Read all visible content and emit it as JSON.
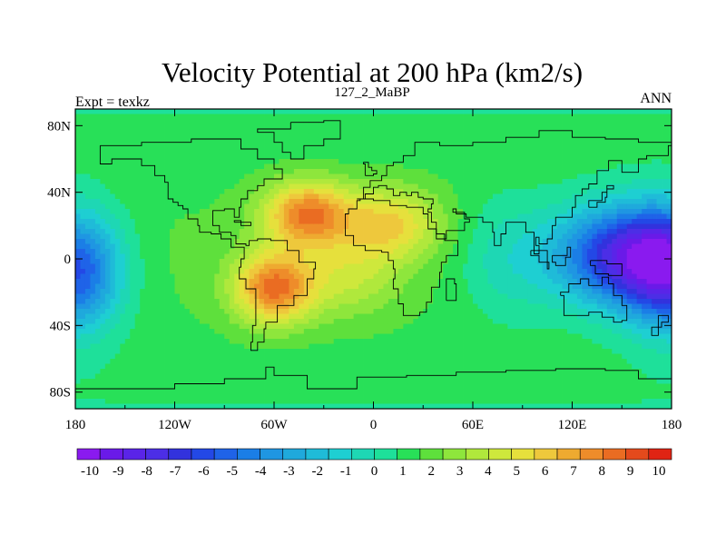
{
  "chart_data": {
    "type": "heatmap",
    "title": "Velocity Potential at 200 hPa (km2/s)",
    "subtitle_left": "Expt = texkz",
    "subtitle_center": "127_2_MaBP",
    "subtitle_right": "ANN",
    "x_ticks": [
      "180",
      "120W",
      "60W",
      "0",
      "60E",
      "120E",
      "180"
    ],
    "x_tick_values": [
      -180,
      -120,
      -60,
      0,
      60,
      120,
      180
    ],
    "y_ticks": [
      "80N",
      "40N",
      "0",
      "40S",
      "80S"
    ],
    "y_tick_values": [
      80,
      40,
      0,
      -40,
      -80
    ],
    "xlim": [
      -180,
      180
    ],
    "ylim": [
      -90,
      90
    ],
    "colorbar_labels": [
      "-10",
      "-9",
      "-8",
      "-7",
      "-6",
      "-5",
      "-4",
      "-3",
      "-2",
      "-1",
      "0",
      "1",
      "2",
      "3",
      "4",
      "5",
      "6",
      "7",
      "8",
      "9",
      "10"
    ],
    "colorbar_colors": [
      "#8a1aef",
      "#6a1ae8",
      "#5a24e8",
      "#4c2ee6",
      "#3232dd",
      "#2348e6",
      "#1f63e8",
      "#1b7ee6",
      "#1f96e2",
      "#1fa9dc",
      "#1fbbd8",
      "#1ecfd2",
      "#1ed7b4",
      "#1ee09a",
      "#28e058",
      "#5ee03c",
      "#8ee63c",
      "#b0e83c",
      "#cee83c",
      "#e6e03c",
      "#eec83c",
      "#eeaa30",
      "#ee8c2a",
      "#ea6c22",
      "#e44a1c",
      "#e02414"
    ],
    "centers": [
      {
        "lon": -40,
        "lat": 28,
        "amp": 7.2,
        "slon": 26,
        "slat": 20
      },
      {
        "lon": -60,
        "lat": -18,
        "amp": 7.2,
        "slon": 24,
        "slat": 22
      },
      {
        "lon": 10,
        "lat": 22,
        "amp": 4.5,
        "slon": 30,
        "slat": 22
      },
      {
        "lon": -15,
        "lat": -10,
        "amp": 2.5,
        "slon": 30,
        "slat": 25
      },
      {
        "lon": 150,
        "lat": 2,
        "amp": -9.2,
        "slon": 42,
        "slat": 32
      },
      {
        "lon": -180,
        "lat": -8,
        "amp": -8.0,
        "slon": 28,
        "slat": 38
      },
      {
        "lon": 180,
        "lat": -8,
        "amp": -8.0,
        "slon": 28,
        "slat": 38
      },
      {
        "lon": 80,
        "lat": 0,
        "amp": -2.0,
        "slon": 30,
        "slat": 40
      }
    ],
    "coastlines": [
      [
        [
          -165,
          68
        ],
        [
          -140,
          70
        ],
        [
          -110,
          72
        ],
        [
          -90,
          72
        ],
        [
          -80,
          66
        ],
        [
          -70,
          60
        ],
        [
          -60,
          54
        ],
        [
          -55,
          48
        ],
        [
          -66,
          44
        ],
        [
          -70,
          41
        ],
        [
          -76,
          36
        ],
        [
          -80,
          31
        ],
        [
          -81,
          25
        ],
        [
          -84,
          30
        ],
        [
          -90,
          29
        ],
        [
          -97,
          26
        ],
        [
          -97,
          20
        ],
        [
          -93,
          16
        ],
        [
          -86,
          14
        ],
        [
          -83,
          9
        ],
        [
          -77,
          8
        ],
        [
          -75,
          11
        ],
        [
          -70,
          12
        ],
        [
          -62,
          11
        ],
        [
          -52,
          5
        ],
        [
          -45,
          -2
        ],
        [
          -35,
          -6
        ],
        [
          -36,
          -12
        ],
        [
          -40,
          -22
        ],
        [
          -48,
          -28
        ],
        [
          -58,
          -38
        ],
        [
          -65,
          -42
        ],
        [
          -66,
          -50
        ],
        [
          -70,
          -55
        ],
        [
          -74,
          -50
        ],
        [
          -73,
          -40
        ],
        [
          -71,
          -30
        ],
        [
          -71,
          -18
        ],
        [
          -77,
          -12
        ],
        [
          -81,
          -5
        ],
        [
          -80,
          0
        ],
        [
          -78,
          7
        ],
        [
          -86,
          12
        ],
        [
          -92,
          15
        ],
        [
          -98,
          16
        ],
        [
          -105,
          20
        ],
        [
          -106,
          24
        ],
        [
          -112,
          30
        ],
        [
          -115,
          32
        ],
        [
          -118,
          34
        ],
        [
          -121,
          36
        ],
        [
          -124,
          40
        ],
        [
          -124,
          46
        ],
        [
          -126,
          50
        ],
        [
          -132,
          56
        ],
        [
          -140,
          60
        ],
        [
          -150,
          60
        ],
        [
          -158,
          57
        ],
        [
          -165,
          60
        ],
        [
          -165,
          68
        ]
      ],
      [
        [
          -50,
          82
        ],
        [
          -30,
          83
        ],
        [
          -20,
          80
        ],
        [
          -20,
          72
        ],
        [
          -30,
          68
        ],
        [
          -42,
          60
        ],
        [
          -50,
          64
        ],
        [
          -55,
          70
        ],
        [
          -60,
          76
        ],
        [
          -70,
          78
        ],
        [
          -50,
          82
        ]
      ],
      [
        [
          -10,
          36
        ],
        [
          -6,
          43
        ],
        [
          -2,
          47
        ],
        [
          5,
          50
        ],
        [
          8,
          56
        ],
        [
          12,
          58
        ],
        [
          18,
          62
        ],
        [
          25,
          70
        ],
        [
          40,
          68
        ],
        [
          60,
          70
        ],
        [
          80,
          73
        ],
        [
          100,
          77
        ],
        [
          120,
          73
        ],
        [
          140,
          72
        ],
        [
          160,
          70
        ],
        [
          180,
          68
        ],
        [
          178,
          62
        ],
        [
          165,
          60
        ],
        [
          160,
          52
        ],
        [
          150,
          59
        ],
        [
          142,
          53
        ],
        [
          135,
          45
        ],
        [
          130,
          42
        ],
        [
          126,
          38
        ],
        [
          122,
          31
        ],
        [
          120,
          25
        ],
        [
          110,
          20
        ],
        [
          108,
          12
        ],
        [
          105,
          9
        ],
        [
          100,
          13
        ],
        [
          98,
          8
        ],
        [
          100,
          3
        ],
        [
          97,
          16
        ],
        [
          92,
          22
        ],
        [
          88,
          22
        ],
        [
          80,
          15
        ],
        [
          77,
          8
        ],
        [
          73,
          16
        ],
        [
          72,
          22
        ],
        [
          66,
          25
        ],
        [
          57,
          25
        ],
        [
          56,
          27
        ],
        [
          50,
          30
        ],
        [
          48,
          28
        ],
        [
          55,
          24
        ],
        [
          58,
          22
        ],
        [
          55,
          17
        ],
        [
          44,
          12
        ],
        [
          43,
          15
        ],
        [
          38,
          22
        ],
        [
          35,
          28
        ],
        [
          33,
          30
        ],
        [
          35,
          33
        ],
        [
          36,
          36
        ],
        [
          30,
          37
        ],
        [
          27,
          40
        ],
        [
          23,
          38
        ],
        [
          20,
          40
        ],
        [
          16,
          38
        ],
        [
          12,
          42
        ],
        [
          8,
          44
        ],
        [
          3,
          43
        ],
        [
          0,
          39
        ],
        [
          -5,
          36
        ],
        [
          -10,
          36
        ]
      ],
      [
        [
          -17,
          21
        ],
        [
          -17,
          14
        ],
        [
          -12,
          8
        ],
        [
          -5,
          5
        ],
        [
          5,
          4
        ],
        [
          9,
          4
        ],
        [
          9,
          -1
        ],
        [
          12,
          -6
        ],
        [
          13,
          -12
        ],
        [
          12,
          -18
        ],
        [
          15,
          -27
        ],
        [
          18,
          -34
        ],
        [
          22,
          -34
        ],
        [
          28,
          -32
        ],
        [
          32,
          -26
        ],
        [
          35,
          -22
        ],
        [
          35,
          -17
        ],
        [
          40,
          -15
        ],
        [
          40,
          -8
        ],
        [
          41,
          -2
        ],
        [
          44,
          2
        ],
        [
          51,
          11
        ],
        [
          43,
          12
        ],
        [
          38,
          18
        ],
        [
          33,
          27
        ],
        [
          30,
          31
        ],
        [
          20,
          32
        ],
        [
          10,
          35
        ],
        [
          0,
          36
        ],
        [
          -8,
          35
        ],
        [
          -10,
          30
        ],
        [
          -15,
          27
        ],
        [
          -17,
          21
        ]
      ],
      [
        [
          113,
          -22
        ],
        [
          115,
          -34
        ],
        [
          120,
          -34
        ],
        [
          130,
          -32
        ],
        [
          138,
          -35
        ],
        [
          145,
          -38
        ],
        [
          150,
          -37
        ],
        [
          153,
          -28
        ],
        [
          150,
          -22
        ],
        [
          145,
          -15
        ],
        [
          142,
          -11
        ],
        [
          138,
          -16
        ],
        [
          130,
          -12
        ],
        [
          125,
          -15
        ],
        [
          118,
          -20
        ],
        [
          113,
          -22
        ]
      ],
      [
        [
          -180,
          -78
        ],
        [
          -150,
          -78
        ],
        [
          -120,
          -75
        ],
        [
          -90,
          -72
        ],
        [
          -65,
          -65
        ],
        [
          -60,
          -70
        ],
        [
          -40,
          -78
        ],
        [
          -10,
          -71
        ],
        [
          20,
          -70
        ],
        [
          50,
          -68
        ],
        [
          80,
          -67
        ],
        [
          110,
          -66
        ],
        [
          140,
          -67
        ],
        [
          160,
          -72
        ],
        [
          180,
          -78
        ]
      ],
      [
        [
          -5,
          50
        ],
        [
          0,
          51
        ],
        [
          2,
          53
        ],
        [
          -1,
          55
        ],
        [
          -3,
          58
        ],
        [
          -6,
          57
        ],
        [
          -5,
          54
        ],
        [
          -5,
          50
        ]
      ],
      [
        [
          130,
          31
        ],
        [
          135,
          34
        ],
        [
          140,
          37
        ],
        [
          141,
          42
        ],
        [
          145,
          44
        ],
        [
          141,
          40
        ],
        [
          138,
          35
        ],
        [
          130,
          31
        ]
      ],
      [
        [
          95,
          5
        ],
        [
          105,
          -6
        ],
        [
          106,
          -2
        ],
        [
          100,
          2
        ],
        [
          95,
          5
        ]
      ],
      [
        [
          108,
          2
        ],
        [
          117,
          7
        ],
        [
          119,
          1
        ],
        [
          116,
          -4
        ],
        [
          110,
          -2
        ],
        [
          108,
          2
        ]
      ],
      [
        [
          131,
          -1
        ],
        [
          141,
          -3
        ],
        [
          150,
          -10
        ],
        [
          142,
          -9
        ],
        [
          134,
          -4
        ],
        [
          131,
          -1
        ]
      ],
      [
        [
          44,
          -25
        ],
        [
          47,
          -25
        ],
        [
          50,
          -15
        ],
        [
          49,
          -12
        ],
        [
          44,
          -17
        ],
        [
          44,
          -25
        ]
      ],
      [
        [
          172,
          -34
        ],
        [
          178,
          -38
        ],
        [
          174,
          -41
        ],
        [
          168,
          -46
        ],
        [
          172,
          -34
        ]
      ],
      [
        [
          -84,
          22
        ],
        [
          -74,
          20
        ],
        [
          -80,
          23
        ],
        [
          -84,
          22
        ]
      ]
    ]
  }
}
